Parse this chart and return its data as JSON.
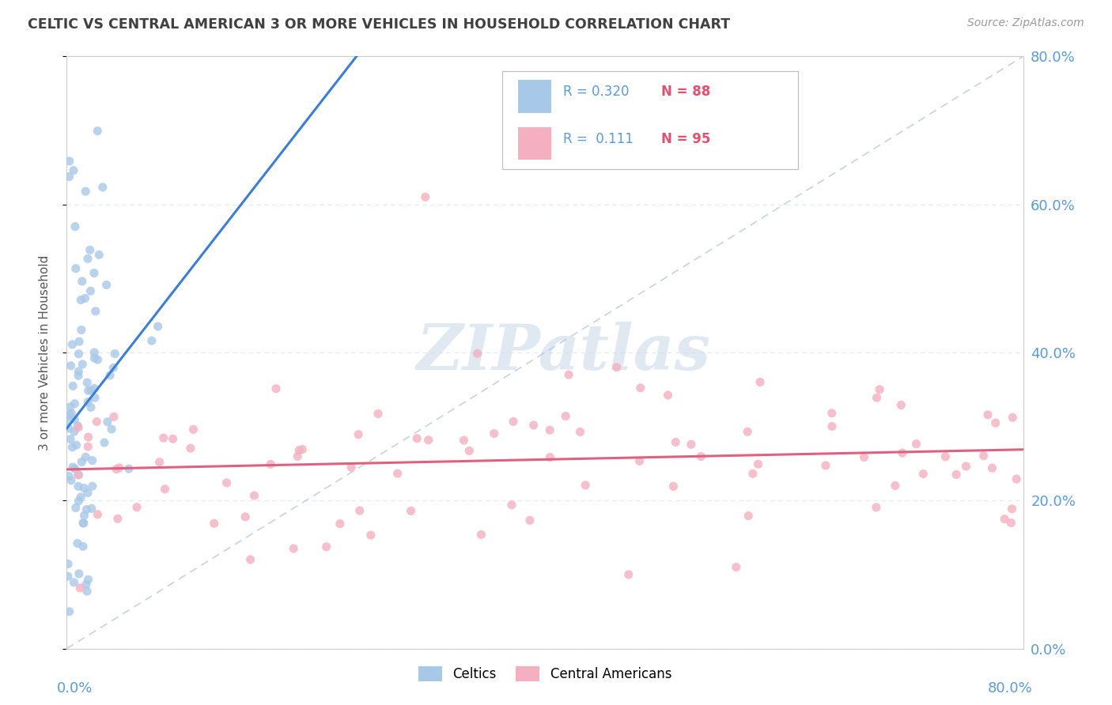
{
  "title": "CELTIC VS CENTRAL AMERICAN 3 OR MORE VEHICLES IN HOUSEHOLD CORRELATION CHART",
  "source": "Source: ZipAtlas.com",
  "ylabel": "3 or more Vehicles in Household",
  "legend_labels": [
    "Celtics",
    "Central Americans"
  ],
  "legend_r1": "R = 0.320",
  "legend_r2": "R =  0.111",
  "legend_n1": "N = 88",
  "legend_n2": "N = 95",
  "watermark": "ZIPatlas",
  "celtic_color": "#a8c8e8",
  "central_color": "#f4b0c0",
  "celtic_line_color": "#3a7fd5",
  "central_line_color": "#e06080",
  "diag_line_color": "#b8c8d8",
  "title_color": "#404040",
  "axis_label_color": "#5b9bd5",
  "r_value_color": "#5b9bd5",
  "n_value_color": "#e05070",
  "background_color": "#ffffff",
  "grid_color": "#dde8f0",
  "xmin": 0.0,
  "xmax": 0.8,
  "ymin": 0.0,
  "ymax": 0.8
}
